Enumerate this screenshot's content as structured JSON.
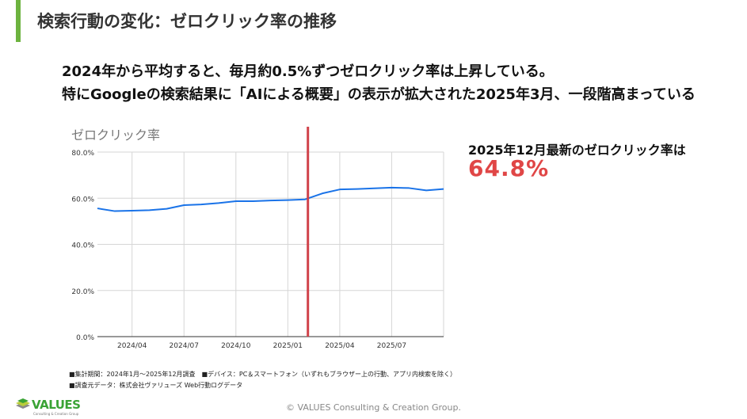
{
  "header": {
    "title": "検索行動の変化：ゼロクリック率の推移",
    "accent_color": "#6db33f"
  },
  "headline": {
    "line1": "2024年から平均すると、毎月約0.5%ずつゼロクリック率は上昇している。",
    "line2": "特にGoogleの検索結果に「AIによる概要」の表示が拡大された2025年3月、一段階高まっている"
  },
  "stat": {
    "label": "2025年12月最新のゼロクリック率は",
    "value": "64.8%",
    "color": "#e04646"
  },
  "chart_data": {
    "type": "line",
    "title": "ゼロクリック率",
    "x": [
      "2024-02",
      "2024-03",
      "2024-04",
      "2024-05",
      "2024-06",
      "2024-07",
      "2024-08",
      "2024-09",
      "2024-10",
      "2024-11",
      "2024-12",
      "2025-01",
      "2025-02",
      "2025-03",
      "2025-04",
      "2025-05",
      "2025-06",
      "2025-07",
      "2025-08",
      "2025-09",
      "2025-10"
    ],
    "values": [
      55.6,
      54.4,
      54.6,
      54.8,
      55.4,
      57.0,
      57.3,
      57.9,
      58.7,
      58.7,
      59.0,
      59.2,
      59.5,
      62.1,
      63.8,
      64.0,
      64.3,
      64.6,
      64.4,
      63.4,
      64.0
    ],
    "x_ticks": [
      "2024/04",
      "2024/07",
      "2024/10",
      "2025/01",
      "2025/04",
      "2025/07"
    ],
    "y_ticks": [
      "0.0%",
      "20.0%",
      "40.0%",
      "60.0%",
      "80.0%"
    ],
    "ylim": [
      0,
      80
    ],
    "grid": true,
    "line_color": "#1a73e8",
    "marker_line": {
      "at": "2025-02",
      "color": "#d0424a"
    }
  },
  "notes": {
    "line1": "■集計期間：2024年1月～2025年12月調査　■デバイス：PC＆スマートフォン（いずれもブラウザー上の行動、アプリ内検索を除く）",
    "line2": "■調査元データ：株式会社ヴァリューズ Web行動ログデータ"
  },
  "footer": {
    "logo": "VALUES",
    "logo_sub": "Consulting & Creation Group",
    "copyright": "© VALUES Consulting & Creation Group."
  }
}
